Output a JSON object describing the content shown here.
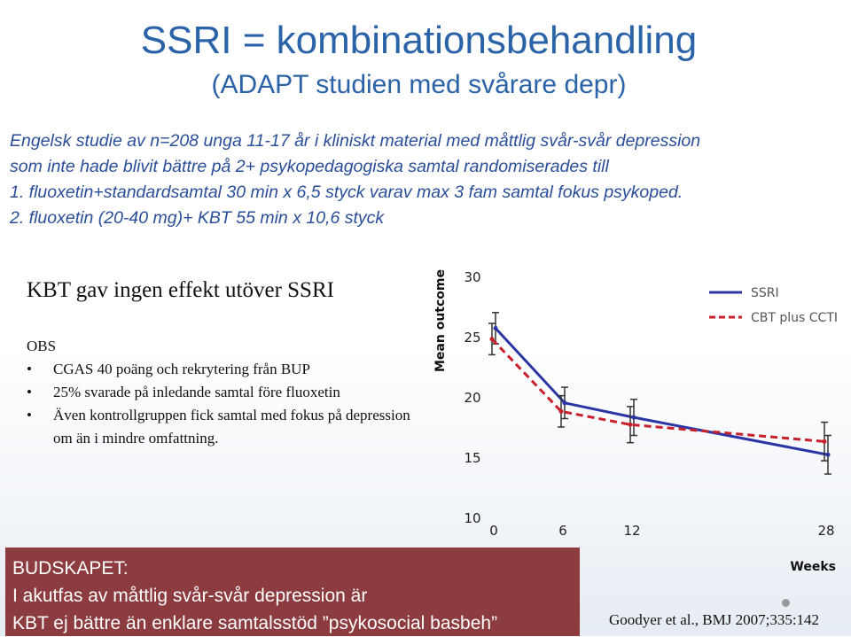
{
  "header": {
    "title": "SSRI = kombinationsbehandling",
    "subtitle": "(ADAPT studien med svårare depr)"
  },
  "intro": {
    "lines": [
      "Engelsk studie av n=208 unga 11-17 år i kliniskt material med måttlig svår-svår depression",
      "som inte hade blivit bättre på 2+ psykopedagogiska samtal randomiserades till",
      "1. fluoxetin+standardsamtal 30 min x 6,5 styck varav max 3 fam samtal fokus psykoped.",
      "2. fluoxetin (20-40 mg)+ KBT 55 min x 10,6 styck"
    ]
  },
  "finding": "KBT gav ingen effekt utöver SSRI",
  "obs": {
    "heading": "OBS",
    "items": [
      "CGAS 40 poäng och rekrytering från BUP",
      "25% svarade på inledande samtal före fluoxetin",
      "Även kontrollgruppen fick samtal med fokus på depression om än i mindre omfattning."
    ]
  },
  "budget": {
    "lines": [
      "BUDSKAPET:",
      "I akutfas av måttlig svår-svår depression är",
      "KBT ej bättre än enklare samtalsstöd ”psykosocial basbeh”"
    ]
  },
  "citation": "Goodyer et al., BMJ 2007;335:142",
  "chart_data": {
    "type": "line",
    "ylabel": "Mean outcome",
    "xlabel": "Weeks",
    "x_ticks": [
      0,
      6,
      12,
      28
    ],
    "y_ticks": [
      10,
      15,
      20,
      25,
      30
    ],
    "ylim": [
      10,
      30
    ],
    "legend_position": "top-right",
    "series": [
      {
        "name": "SSRI",
        "color": "#2b35a3",
        "style": "solid",
        "x": [
          0,
          6,
          12,
          28
        ],
        "y": [
          25.7,
          19.5,
          18.3,
          15.2
        ],
        "err": [
          1.3,
          1.3,
          1.5,
          1.6
        ]
      },
      {
        "name": "CBT plus CCTI",
        "color": "#c8202b",
        "style": "dashed",
        "x": [
          0,
          6,
          12,
          28
        ],
        "y": [
          24.8,
          18.8,
          17.7,
          16.3
        ],
        "err": [
          1.3,
          1.3,
          1.5,
          1.6
        ]
      }
    ]
  }
}
